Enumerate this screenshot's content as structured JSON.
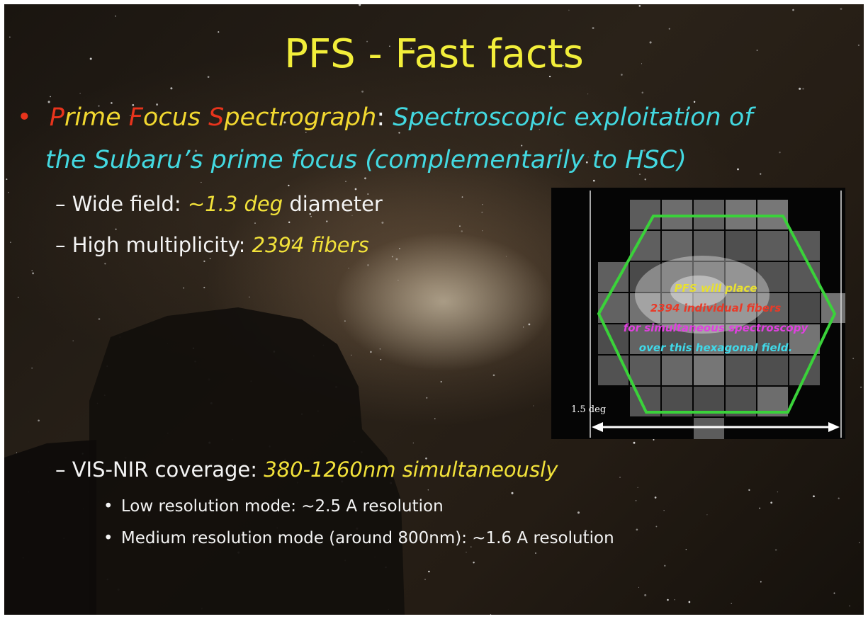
{
  "title": "PFS - Fast facts",
  "main_bullet": {
    "marker": "•",
    "name_parts": [
      "P",
      "rime ",
      "F",
      "ocus ",
      "S",
      "pectrograph"
    ],
    "separator": ":",
    "description_lines": [
      "Spectroscopic exploitation of",
      "the Subaru’s prime focus (complementarily to HSC)"
    ]
  },
  "sub_items": [
    {
      "marker": "–",
      "label": "Wide field:",
      "highlight": "~1.3 deg",
      "suffix": "diameter"
    },
    {
      "marker": "–",
      "label": "High multiplicity:",
      "highlight": "2394 fibers"
    },
    {
      "marker": "–",
      "label": "VIS-NIR coverage:",
      "highlight": "380-1260nm simultaneously",
      "subitems": [
        {
          "marker": "•",
          "text": "Low resolution mode: ~2.5 A resolution"
        },
        {
          "marker": "•",
          "text": "Medium resolution mode (around 800nm): ~1.6 A resolution"
        }
      ]
    }
  ],
  "inset": {
    "caption_lines": [
      "PFS will place",
      "2394 individual fibers",
      "for simultaneous spectroscopy",
      "over this hexagonal field."
    ],
    "scale_label": "1.5 deg"
  }
}
